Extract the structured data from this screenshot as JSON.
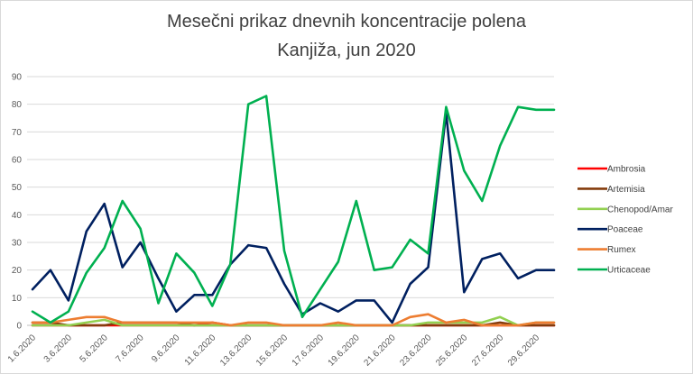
{
  "chart_data": {
    "type": "line",
    "title": "Mesečni prikaz dnevnih koncentracije polena",
    "subtitle": "Kanjiža, jun 2020",
    "xlabel": "",
    "ylabel": "",
    "ylim": [
      0,
      90
    ],
    "yticks": [
      "0",
      "10",
      "20",
      "30",
      "40",
      "50",
      "60",
      "70",
      "80",
      "90"
    ],
    "grid": true,
    "legend_position": "right",
    "x": [
      "1.6.2020",
      "2.6.2020",
      "3.6.2020",
      "4.6.2020",
      "5.6.2020",
      "6.6.2020",
      "7.6.2020",
      "8.6.2020",
      "9.6.2020",
      "10.6.2020",
      "11.6.2020",
      "12.6.2020",
      "13.6.2020",
      "14.6.2020",
      "15.6.2020",
      "16.6.2020",
      "17.6.2020",
      "18.6.2020",
      "19.6.2020",
      "20.6.2020",
      "21.6.2020",
      "22.6.2020",
      "23.6.2020",
      "24.6.2020",
      "25.6.2020",
      "26.6.2020",
      "27.6.2020",
      "28.6.2020",
      "29.6.2020",
      "30.6.2020"
    ],
    "xticks_shown": [
      "1.6.2020",
      "3.6.2020",
      "5.6.2020",
      "7.6.2020",
      "9.6.2020",
      "11.6.2020",
      "13.6.2020",
      "15.6.2020",
      "17.6.2020",
      "19.6.2020",
      "21.6.2020",
      "23.6.2020",
      "25.6.2020",
      "27.6.2020",
      "29.6.2020"
    ],
    "series": [
      {
        "name": "Ambrosia",
        "color": "#ff0000",
        "values": [
          0,
          0,
          0,
          0,
          0,
          0,
          0,
          0,
          0,
          0,
          1,
          0,
          0,
          0,
          0,
          0,
          0,
          0,
          0,
          0,
          0,
          0,
          0,
          0,
          0,
          0,
          0,
          0,
          0,
          0
        ]
      },
      {
        "name": "Artemisia",
        "color": "#843c0c",
        "values": [
          1,
          1,
          0,
          0,
          0,
          1,
          1,
          1,
          1,
          0,
          0,
          0,
          0,
          0,
          0,
          0,
          0,
          0,
          0,
          0,
          0,
          0,
          0,
          0,
          0,
          0,
          1,
          0,
          0,
          0
        ]
      },
      {
        "name": "Chenopod/Amar",
        "color": "#92d050",
        "values": [
          0,
          0,
          0,
          1,
          2,
          0,
          0,
          0,
          0,
          0,
          0,
          0,
          0,
          0,
          0,
          0,
          0,
          0,
          0,
          0,
          0,
          0,
          1,
          1,
          1,
          1,
          3,
          0,
          1,
          1
        ]
      },
      {
        "name": "Poaceae",
        "color": "#002060",
        "values": [
          13,
          20,
          9,
          34,
          44,
          21,
          30,
          17,
          5,
          11,
          11,
          22,
          29,
          28,
          15,
          4,
          8,
          5,
          9,
          9,
          1,
          15,
          21,
          77,
          12,
          24,
          26,
          17,
          20,
          20
        ]
      },
      {
        "name": "Rumex",
        "color": "#ed7d31",
        "values": [
          1,
          1,
          2,
          3,
          3,
          1,
          1,
          1,
          1,
          1,
          1,
          0,
          1,
          1,
          0,
          0,
          0,
          1,
          0,
          0,
          0,
          3,
          4,
          1,
          2,
          0,
          0,
          0,
          1,
          1
        ]
      },
      {
        "name": "Urticaceae",
        "color": "#00b050",
        "values": [
          5,
          1,
          5,
          19,
          28,
          45,
          35,
          8,
          26,
          19,
          7,
          22,
          80,
          83,
          27,
          3,
          13,
          23,
          45,
          20,
          21,
          31,
          26,
          79,
          56,
          45,
          65,
          79,
          78,
          78
        ]
      }
    ]
  }
}
